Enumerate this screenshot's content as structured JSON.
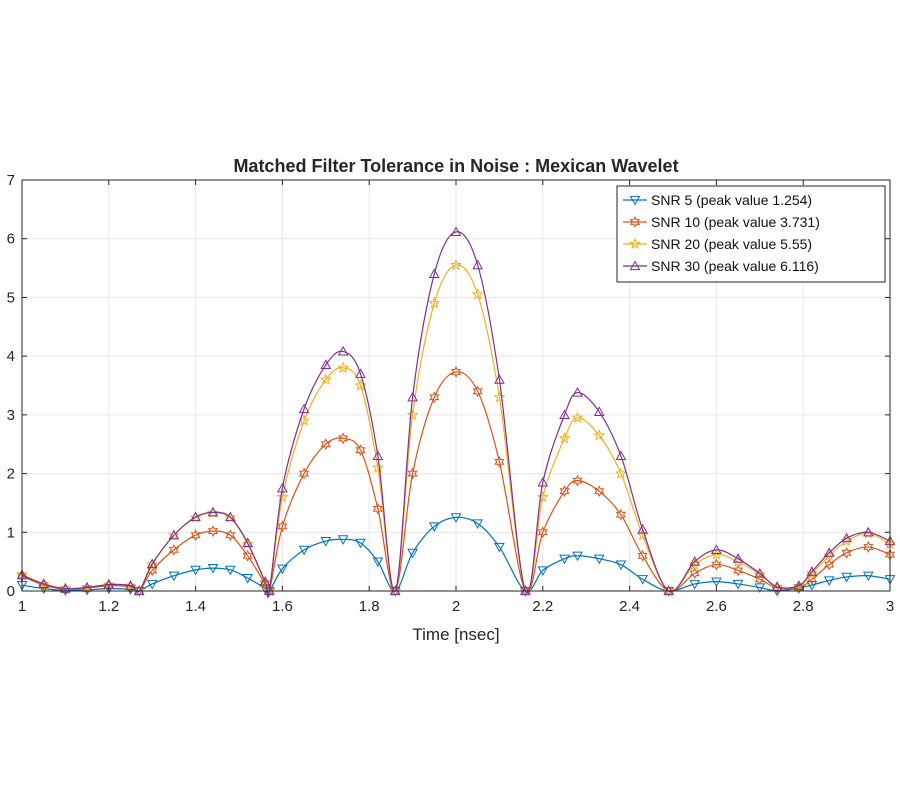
{
  "chart_data": {
    "type": "line",
    "title": "Matched Filter Tolerance in Noise : Mexican Wavelet",
    "xlabel": "Time [nsec]",
    "ylabel": "",
    "xlim": [
      1,
      3
    ],
    "ylim": [
      0,
      7
    ],
    "xticks": [
      "1",
      "1.2",
      "1.4",
      "1.6",
      "1.8",
      "2",
      "2.2",
      "2.4",
      "2.6",
      "2.8",
      "3"
    ],
    "yticks": [
      "0",
      "1",
      "2",
      "3",
      "4",
      "5",
      "6",
      "7"
    ],
    "grid": true,
    "legend_position": "top-right",
    "x": [
      1.0,
      1.05,
      1.1,
      1.15,
      1.2,
      1.25,
      1.27,
      1.3,
      1.35,
      1.4,
      1.44,
      1.48,
      1.52,
      1.56,
      1.57,
      1.6,
      1.65,
      1.7,
      1.74,
      1.78,
      1.82,
      1.86,
      1.9,
      1.95,
      2.0,
      2.05,
      2.1,
      2.16,
      2.2,
      2.25,
      2.28,
      2.33,
      2.38,
      2.43,
      2.49,
      2.55,
      2.6,
      2.65,
      2.7,
      2.74,
      2.79,
      2.82,
      2.86,
      2.9,
      2.95,
      3.0
    ],
    "series": [
      {
        "name": "SNR 5 (peak value 1.254)",
        "color": "#0072BD",
        "marker": "triangle-down",
        "values": [
          0.1,
          0.04,
          0.01,
          0.02,
          0.04,
          0.03,
          0.0,
          0.12,
          0.26,
          0.36,
          0.39,
          0.36,
          0.22,
          0.05,
          0.0,
          0.38,
          0.7,
          0.85,
          0.88,
          0.82,
          0.5,
          0.0,
          0.65,
          1.1,
          1.254,
          1.15,
          0.75,
          0.0,
          0.35,
          0.55,
          0.6,
          0.55,
          0.45,
          0.2,
          0.0,
          0.12,
          0.16,
          0.12,
          0.06,
          0.0,
          0.05,
          0.1,
          0.18,
          0.24,
          0.26,
          0.2
        ]
      },
      {
        "name": "SNR 10 (peak value 3.731)",
        "color": "#D95319",
        "marker": "hexagram",
        "values": [
          0.25,
          0.1,
          0.03,
          0.05,
          0.09,
          0.07,
          0.0,
          0.35,
          0.7,
          0.95,
          1.02,
          0.95,
          0.6,
          0.12,
          0.0,
          1.1,
          2.0,
          2.5,
          2.6,
          2.4,
          1.4,
          0.0,
          2.0,
          3.3,
          3.731,
          3.4,
          2.2,
          0.0,
          1.0,
          1.7,
          1.88,
          1.7,
          1.3,
          0.6,
          0.0,
          0.3,
          0.45,
          0.35,
          0.2,
          0.05,
          0.05,
          0.2,
          0.45,
          0.65,
          0.75,
          0.62
        ]
      },
      {
        "name": "SNR 20 (peak value 5.55)",
        "color": "#EDB120",
        "marker": "pentagram",
        "values": [
          0.28,
          0.12,
          0.04,
          0.06,
          0.11,
          0.09,
          0.0,
          0.45,
          0.95,
          1.25,
          1.33,
          1.25,
          0.8,
          0.15,
          0.0,
          1.6,
          2.9,
          3.6,
          3.8,
          3.5,
          2.1,
          0.0,
          3.0,
          4.9,
          5.55,
          5.05,
          3.3,
          0.0,
          1.6,
          2.6,
          2.95,
          2.65,
          2.0,
          0.95,
          0.0,
          0.45,
          0.62,
          0.5,
          0.28,
          0.07,
          0.08,
          0.3,
          0.6,
          0.85,
          0.98,
          0.8
        ]
      },
      {
        "name": "SNR 30 (peak value 6.116)",
        "color": "#7E2F8E",
        "marker": "triangle-up",
        "values": [
          0.27,
          0.12,
          0.04,
          0.06,
          0.11,
          0.09,
          0.0,
          0.46,
          0.95,
          1.26,
          1.34,
          1.26,
          0.82,
          0.16,
          0.0,
          1.75,
          3.1,
          3.85,
          4.08,
          3.7,
          2.3,
          0.0,
          3.3,
          5.4,
          6.116,
          5.55,
          3.6,
          0.0,
          1.85,
          3.0,
          3.38,
          3.05,
          2.3,
          1.05,
          0.0,
          0.5,
          0.7,
          0.55,
          0.3,
          0.07,
          0.09,
          0.33,
          0.65,
          0.9,
          1.0,
          0.85
        ]
      }
    ]
  }
}
